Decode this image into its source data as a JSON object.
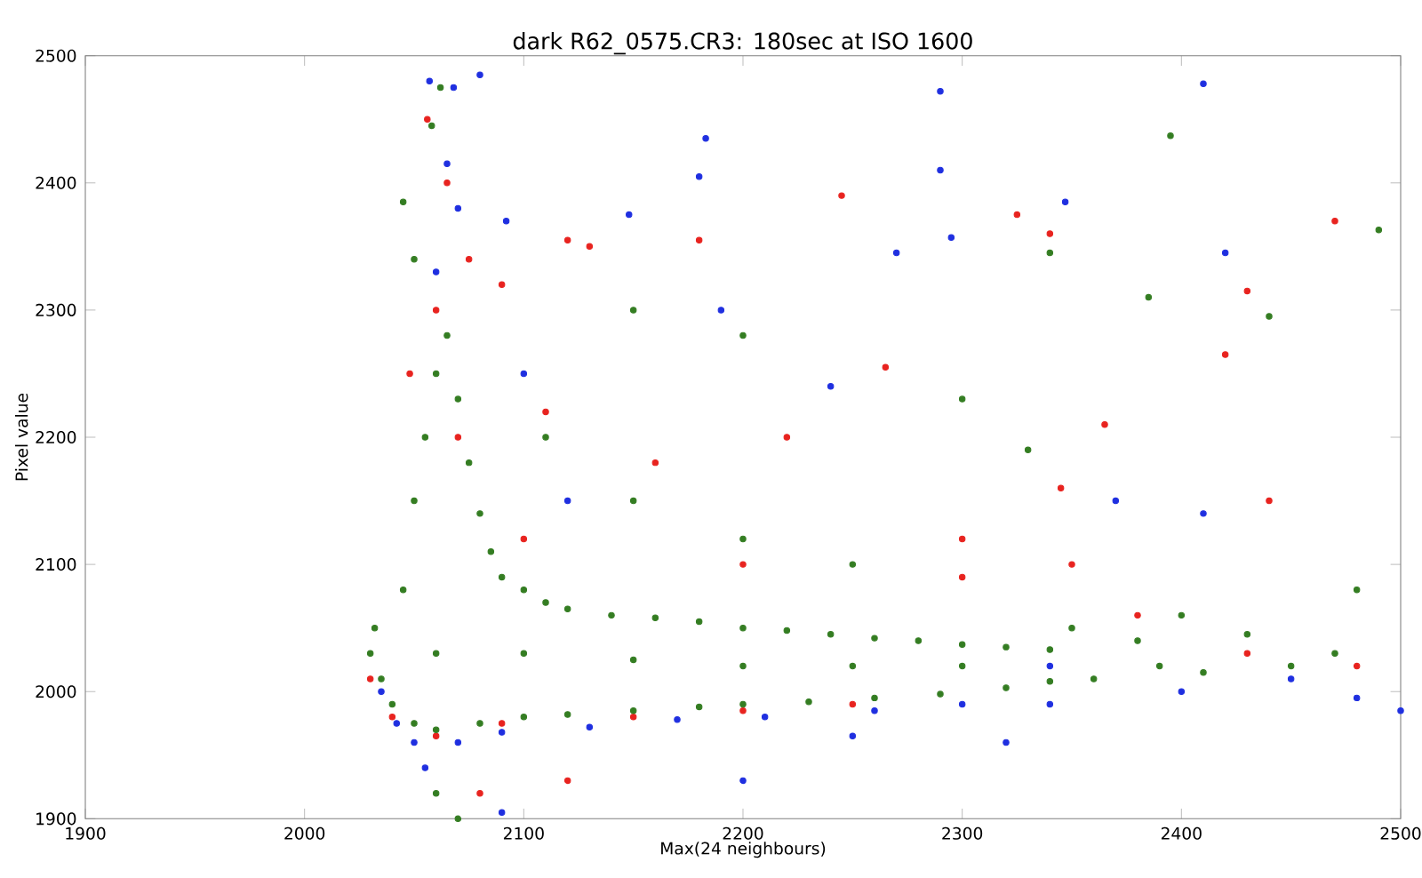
{
  "chart_data": {
    "type": "scatter",
    "title": "dark R62_0575.CR3:  180sec at ISO 1600",
    "xlabel": "Max(24 neighbours)",
    "ylabel": "Pixel value",
    "xlim": [
      1900,
      2500
    ],
    "ylim": [
      1900,
      2500
    ],
    "xticks": [
      1900,
      2000,
      2100,
      2200,
      2300,
      2400,
      2500
    ],
    "yticks": [
      1900,
      2000,
      2100,
      2200,
      2300,
      2400,
      2500
    ],
    "grid": false,
    "series": [
      {
        "color": "#e8231f",
        "x": [
          2030,
          2040,
          2048,
          2056,
          2065,
          2075,
          2090,
          2120,
          2130,
          2180,
          2245,
          2265,
          2325,
          2340,
          2420,
          2430,
          2470,
          2220,
          2160,
          2110,
          2300,
          2440,
          2060,
          2090,
          2150,
          2200,
          2250,
          2120,
          2080,
          2100,
          2200,
          2380,
          2430,
          2480,
          2350,
          2300,
          2070,
          2060,
          2365,
          2345
        ],
        "values": [
          2010,
          1980,
          2250,
          2450,
          2400,
          2340,
          2320,
          2355,
          2350,
          2355,
          2390,
          2255,
          2375,
          2360,
          2265,
          2315,
          2370,
          2200,
          2180,
          2220,
          2120,
          2150,
          1965,
          1975,
          1980,
          1985,
          1990,
          1930,
          1920,
          2120,
          2100,
          2060,
          2030,
          2020,
          2100,
          2090,
          2200,
          2300,
          2210,
          2160
        ]
      },
      {
        "color": "#1f2fe0",
        "x": [
          2035,
          2042,
          2050,
          2068,
          2057,
          2080,
          2065,
          2070,
          2092,
          2148,
          2183,
          2180,
          2290,
          2290,
          2295,
          2347,
          2410,
          2420,
          2270,
          2190,
          2055,
          2070,
          2090,
          2130,
          2170,
          2210,
          2260,
          2300,
          2340,
          2320,
          2250,
          2200,
          2090,
          2340,
          2400,
          2450,
          2480,
          2500,
          2370,
          2410,
          2240,
          2120,
          2100,
          2060
        ],
        "values": [
          2000,
          1975,
          1960,
          2475,
          2480,
          2485,
          2415,
          2380,
          2370,
          2375,
          2435,
          2405,
          2472,
          2410,
          2357,
          2385,
          2478,
          2345,
          2345,
          2300,
          1940,
          1960,
          1968,
          1972,
          1978,
          1980,
          1985,
          1990,
          1990,
          1960,
          1965,
          1930,
          1905,
          2020,
          2000,
          2010,
          1995,
          1985,
          2150,
          2140,
          2240,
          2150,
          2250,
          2330
        ]
      },
      {
        "color": "#347d22",
        "x": [
          2030,
          2032,
          2035,
          2040,
          2045,
          2050,
          2055,
          2060,
          2065,
          2070,
          2075,
          2080,
          2085,
          2090,
          2100,
          2110,
          2120,
          2140,
          2160,
          2180,
          2200,
          2220,
          2240,
          2260,
          2280,
          2300,
          2320,
          2340,
          2050,
          2060,
          2080,
          2100,
          2120,
          2150,
          2180,
          2200,
          2230,
          2260,
          2290,
          2320,
          2340,
          2060,
          2100,
          2150,
          2200,
          2250,
          2300,
          2350,
          2360,
          2380,
          2390,
          2400,
          2410,
          2430,
          2450,
          2470,
          2480,
          2045,
          2050,
          2062,
          2058,
          2110,
          2150,
          2200,
          2250,
          2300,
          2340,
          2395,
          2385,
          2440,
          2490,
          2150,
          2060,
          2070,
          2200,
          2330
        ],
        "values": [
          2030,
          2050,
          2010,
          1990,
          2080,
          2150,
          2200,
          2250,
          2280,
          2230,
          2180,
          2140,
          2110,
          2090,
          2080,
          2070,
          2065,
          2060,
          2058,
          2055,
          2050,
          2048,
          2045,
          2042,
          2040,
          2037,
          2035,
          2033,
          1975,
          1970,
          1975,
          1980,
          1982,
          1985,
          1988,
          1990,
          1992,
          1995,
          1998,
          2003,
          2008,
          2030,
          2030,
          2025,
          2020,
          2020,
          2020,
          2050,
          2010,
          2040,
          2020,
          2060,
          2015,
          2045,
          2020,
          2030,
          2080,
          2385,
          2340,
          2475,
          2445,
          2200,
          2150,
          2120,
          2100,
          2230,
          2345,
          2437,
          2310,
          2295,
          2363,
          2300,
          1920,
          1900,
          2280,
          2190
        ]
      }
    ]
  }
}
